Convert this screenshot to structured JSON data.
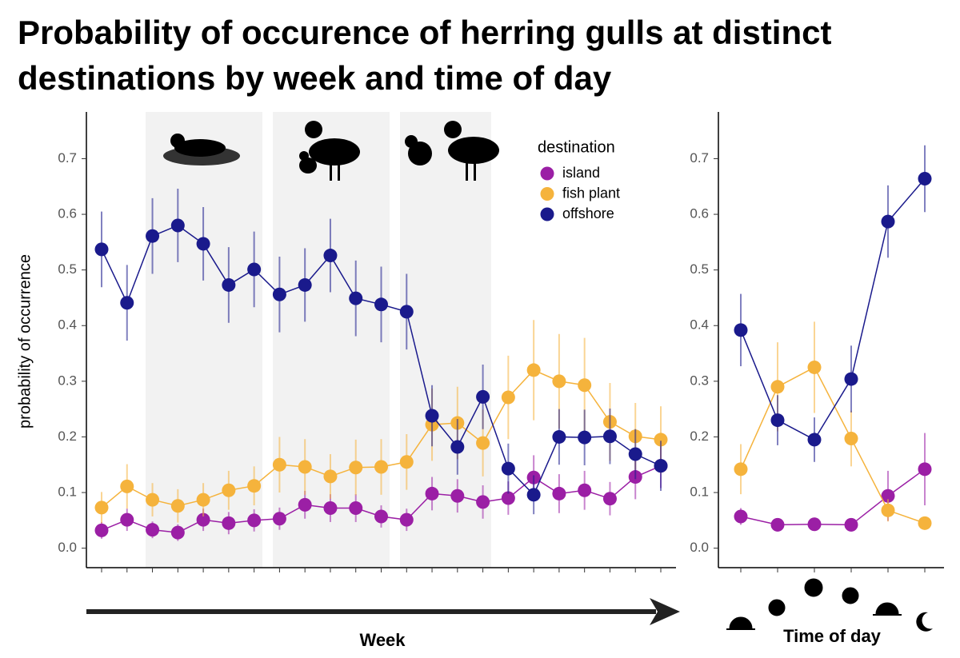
{
  "chart_data": [
    {
      "type": "line",
      "title": "Probability of occurence of herring gulls at distinct destinations by week and time of day",
      "y_label": "probability of occurrence",
      "x_label": "Week",
      "legend_title": "destination",
      "legend": "upper right",
      "categories": [
        null,
        null,
        null,
        null,
        null,
        null,
        null,
        null,
        null,
        null,
        null,
        null,
        null,
        null,
        null,
        null,
        null,
        null,
        null,
        null,
        null,
        null,
        null
      ],
      "ylim": [
        -0.035,
        0.784
      ],
      "yticks": [
        {
          "value": 0,
          "label": "0.0"
        },
        0.1,
        0.2,
        0.3,
        0.4,
        0.5,
        0.6,
        0.7
      ],
      "series": [
        {
          "name": "island",
          "color": "#9b1fa5",
          "values": [
            0.032,
            0.051,
            0.033,
            0.028,
            0.051,
            0.045,
            0.05,
            0.053,
            0.078,
            0.072,
            0.072,
            0.057,
            0.051,
            0.098,
            0.094,
            0.083,
            0.09,
            0.127,
            0.098,
            0.104,
            0.089,
            0.128,
            0.148
          ],
          "errors": [
            0.015,
            0.02,
            0.015,
            0.015,
            0.02,
            0.02,
            0.02,
            0.02,
            0.025,
            0.025,
            0.025,
            0.02,
            0.02,
            0.03,
            0.03,
            0.03,
            0.03,
            0.04,
            0.035,
            0.035,
            0.03,
            0.04,
            0.04
          ]
        },
        {
          "name": "fish plant",
          "color": "#f5b33c",
          "values": [
            0.073,
            0.111,
            0.087,
            0.076,
            0.087,
            0.104,
            0.112,
            0.15,
            0.146,
            0.129,
            0.145,
            0.146,
            0.155,
            0.222,
            0.225,
            0.189,
            0.271,
            0.32,
            0.3,
            0.293,
            0.227,
            0.201,
            0.195
          ],
          "errors": [
            0.028,
            0.04,
            0.03,
            0.03,
            0.03,
            0.035,
            0.035,
            0.05,
            0.05,
            0.04,
            0.05,
            0.05,
            0.05,
            0.065,
            0.065,
            0.06,
            0.075,
            0.09,
            0.085,
            0.085,
            0.07,
            0.06,
            0.06
          ]
        },
        {
          "name": "offshore",
          "color": "#1a1a8c",
          "values": [
            0.537,
            0.441,
            0.561,
            0.58,
            0.547,
            0.473,
            0.501,
            0.456,
            0.473,
            0.526,
            0.449,
            0.438,
            0.425,
            0.238,
            0.182,
            0.272,
            0.143,
            0.096,
            0.2,
            0.199,
            0.201,
            0.169,
            0.148
          ],
          "errors": [
            0.068,
            0.068,
            0.068,
            0.066,
            0.066,
            0.068,
            0.068,
            0.068,
            0.066,
            0.066,
            0.068,
            0.068,
            0.068,
            0.055,
            0.05,
            0.058,
            0.045,
            0.035,
            0.05,
            0.05,
            0.05,
            0.045,
            0.045
          ]
        }
      ]
    },
    {
      "type": "line",
      "x_label": "Time of day",
      "categories": [
        null,
        null,
        null,
        null,
        null,
        null
      ],
      "ylim": [
        -0.035,
        0.784
      ],
      "yticks": [
        {
          "value": 0,
          "label": "0.0"
        },
        0.1,
        0.2,
        0.3,
        0.4,
        0.5,
        0.6,
        0.7
      ],
      "series": [
        {
          "color": "#9b1fa5",
          "values": [
            0.057,
            0.042,
            0.043,
            0.042,
            0.094,
            0.142
          ],
          "errors": [
            0.015,
            0.012,
            0.012,
            0.012,
            0.045,
            0.065
          ]
        },
        {
          "color": "#f5b33c",
          "values": [
            0.142,
            0.29,
            0.325,
            0.197,
            0.068,
            0.045
          ],
          "errors": [
            0.045,
            0.08,
            0.082,
            0.05,
            0.02,
            0.012
          ]
        },
        {
          "color": "#1a1a8c",
          "values": [
            0.392,
            0.23,
            0.195,
            0.304,
            0.587,
            0.664
          ],
          "errors": [
            0.065,
            0.045,
            0.04,
            0.06,
            0.065,
            0.06
          ]
        }
      ]
    }
  ]
}
